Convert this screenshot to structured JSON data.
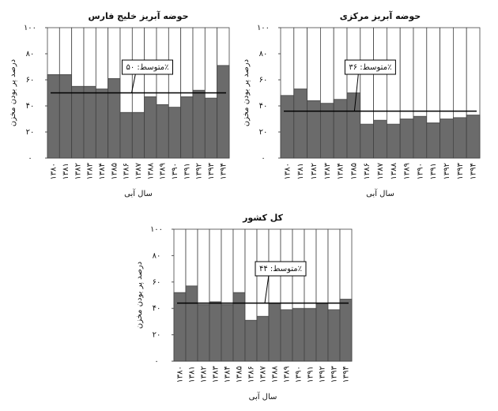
{
  "chart_data": [
    {
      "type": "bar",
      "title": "حوضه آبریز خلیج فارس",
      "x_label": "سال آبی",
      "y_label": "درصد پر بودن مخزن",
      "categories": [
        "۱۳۸۰",
        "۱۳۸۱",
        "۱۳۸۲",
        "۱۳۸۳",
        "۱۳۸۴",
        "۱۳۸۵",
        "۱۳۸۶",
        "۱۳۸۷",
        "۱۳۸۸",
        "۱۳۸۹",
        "۱۳۹۰",
        "۱۳۹۱",
        "۱۳۹۲",
        "۱۳۹۳",
        "۱۳۹۴"
      ],
      "values": [
        64,
        64,
        55,
        55,
        53,
        61,
        35,
        35,
        47,
        41,
        39,
        47,
        52,
        46,
        71
      ],
      "color": "#6b6b6b",
      "mean": 50,
      "annotation": "متوسط: ۵۰٪",
      "ylim": [
        0,
        100
      ],
      "yticks": [
        {
          "value": 0,
          "label": "۰"
        },
        {
          "value": 20,
          "label": "۲۰"
        },
        {
          "value": 40,
          "label": "۴۰"
        },
        {
          "value": 60,
          "label": "۶۰"
        },
        {
          "value": 80,
          "label": "۸۰"
        },
        {
          "value": 100,
          "label": "۱۰۰"
        }
      ]
    },
    {
      "type": "bar",
      "title": "حوضه آبریز مرکزی",
      "x_label": "سال آبی",
      "y_label": "درصد پر بودن مخزن",
      "categories": [
        "۱۳۸۰",
        "۱۳۸۱",
        "۱۳۸۲",
        "۱۳۸۳",
        "۱۳۸۴",
        "۱۳۸۵",
        "۱۳۸۶",
        "۱۳۸۷",
        "۱۳۸۸",
        "۱۳۸۹",
        "۱۳۹۰",
        "۱۳۹۱",
        "۱۳۹۲",
        "۱۳۹۳",
        "۱۳۹۴"
      ],
      "values": [
        48,
        53,
        44,
        42,
        45,
        50,
        26,
        29,
        26,
        30,
        32,
        27,
        30,
        31,
        33
      ],
      "color": "#6b6b6b",
      "mean": 36,
      "annotation": "متوسط: ۳۶٪",
      "ylim": [
        0,
        100
      ],
      "yticks": [
        {
          "value": 0,
          "label": "۰"
        },
        {
          "value": 20,
          "label": "۲۰"
        },
        {
          "value": 40,
          "label": "۴۰"
        },
        {
          "value": 60,
          "label": "۶۰"
        },
        {
          "value": 80,
          "label": "۸۰"
        },
        {
          "value": 100,
          "label": "۱۰۰"
        }
      ]
    },
    {
      "type": "bar",
      "title": "کل کشور",
      "x_label": "سال آبی",
      "y_label": "درصد پر بودن مخزن",
      "categories": [
        "۱۳۸۰",
        "۱۳۸۱",
        "۱۳۸۲",
        "۱۳۸۳",
        "۱۳۸۴",
        "۱۳۸۵",
        "۱۳۸۶",
        "۱۳۸۷",
        "۱۳۸۸",
        "۱۳۸۹",
        "۱۳۹۰",
        "۱۳۹۱",
        "۱۳۹۲",
        "۱۳۹۳",
        "۱۳۹۴"
      ],
      "values": [
        52,
        57,
        43,
        45,
        43,
        52,
        31,
        34,
        44,
        39,
        40,
        40,
        44,
        39,
        47
      ],
      "color": "#6b6b6b",
      "mean": 44,
      "annotation": "متوسط: ۴۴٪",
      "ylim": [
        0,
        100
      ],
      "yticks": [
        {
          "value": 0,
          "label": "۰"
        },
        {
          "value": 20,
          "label": "۲۰"
        },
        {
          "value": 40,
          "label": "۴۰"
        },
        {
          "value": 60,
          "label": "۶۰"
        },
        {
          "value": 80,
          "label": "۸۰"
        },
        {
          "value": 100,
          "label": "۱۰۰"
        }
      ]
    }
  ]
}
